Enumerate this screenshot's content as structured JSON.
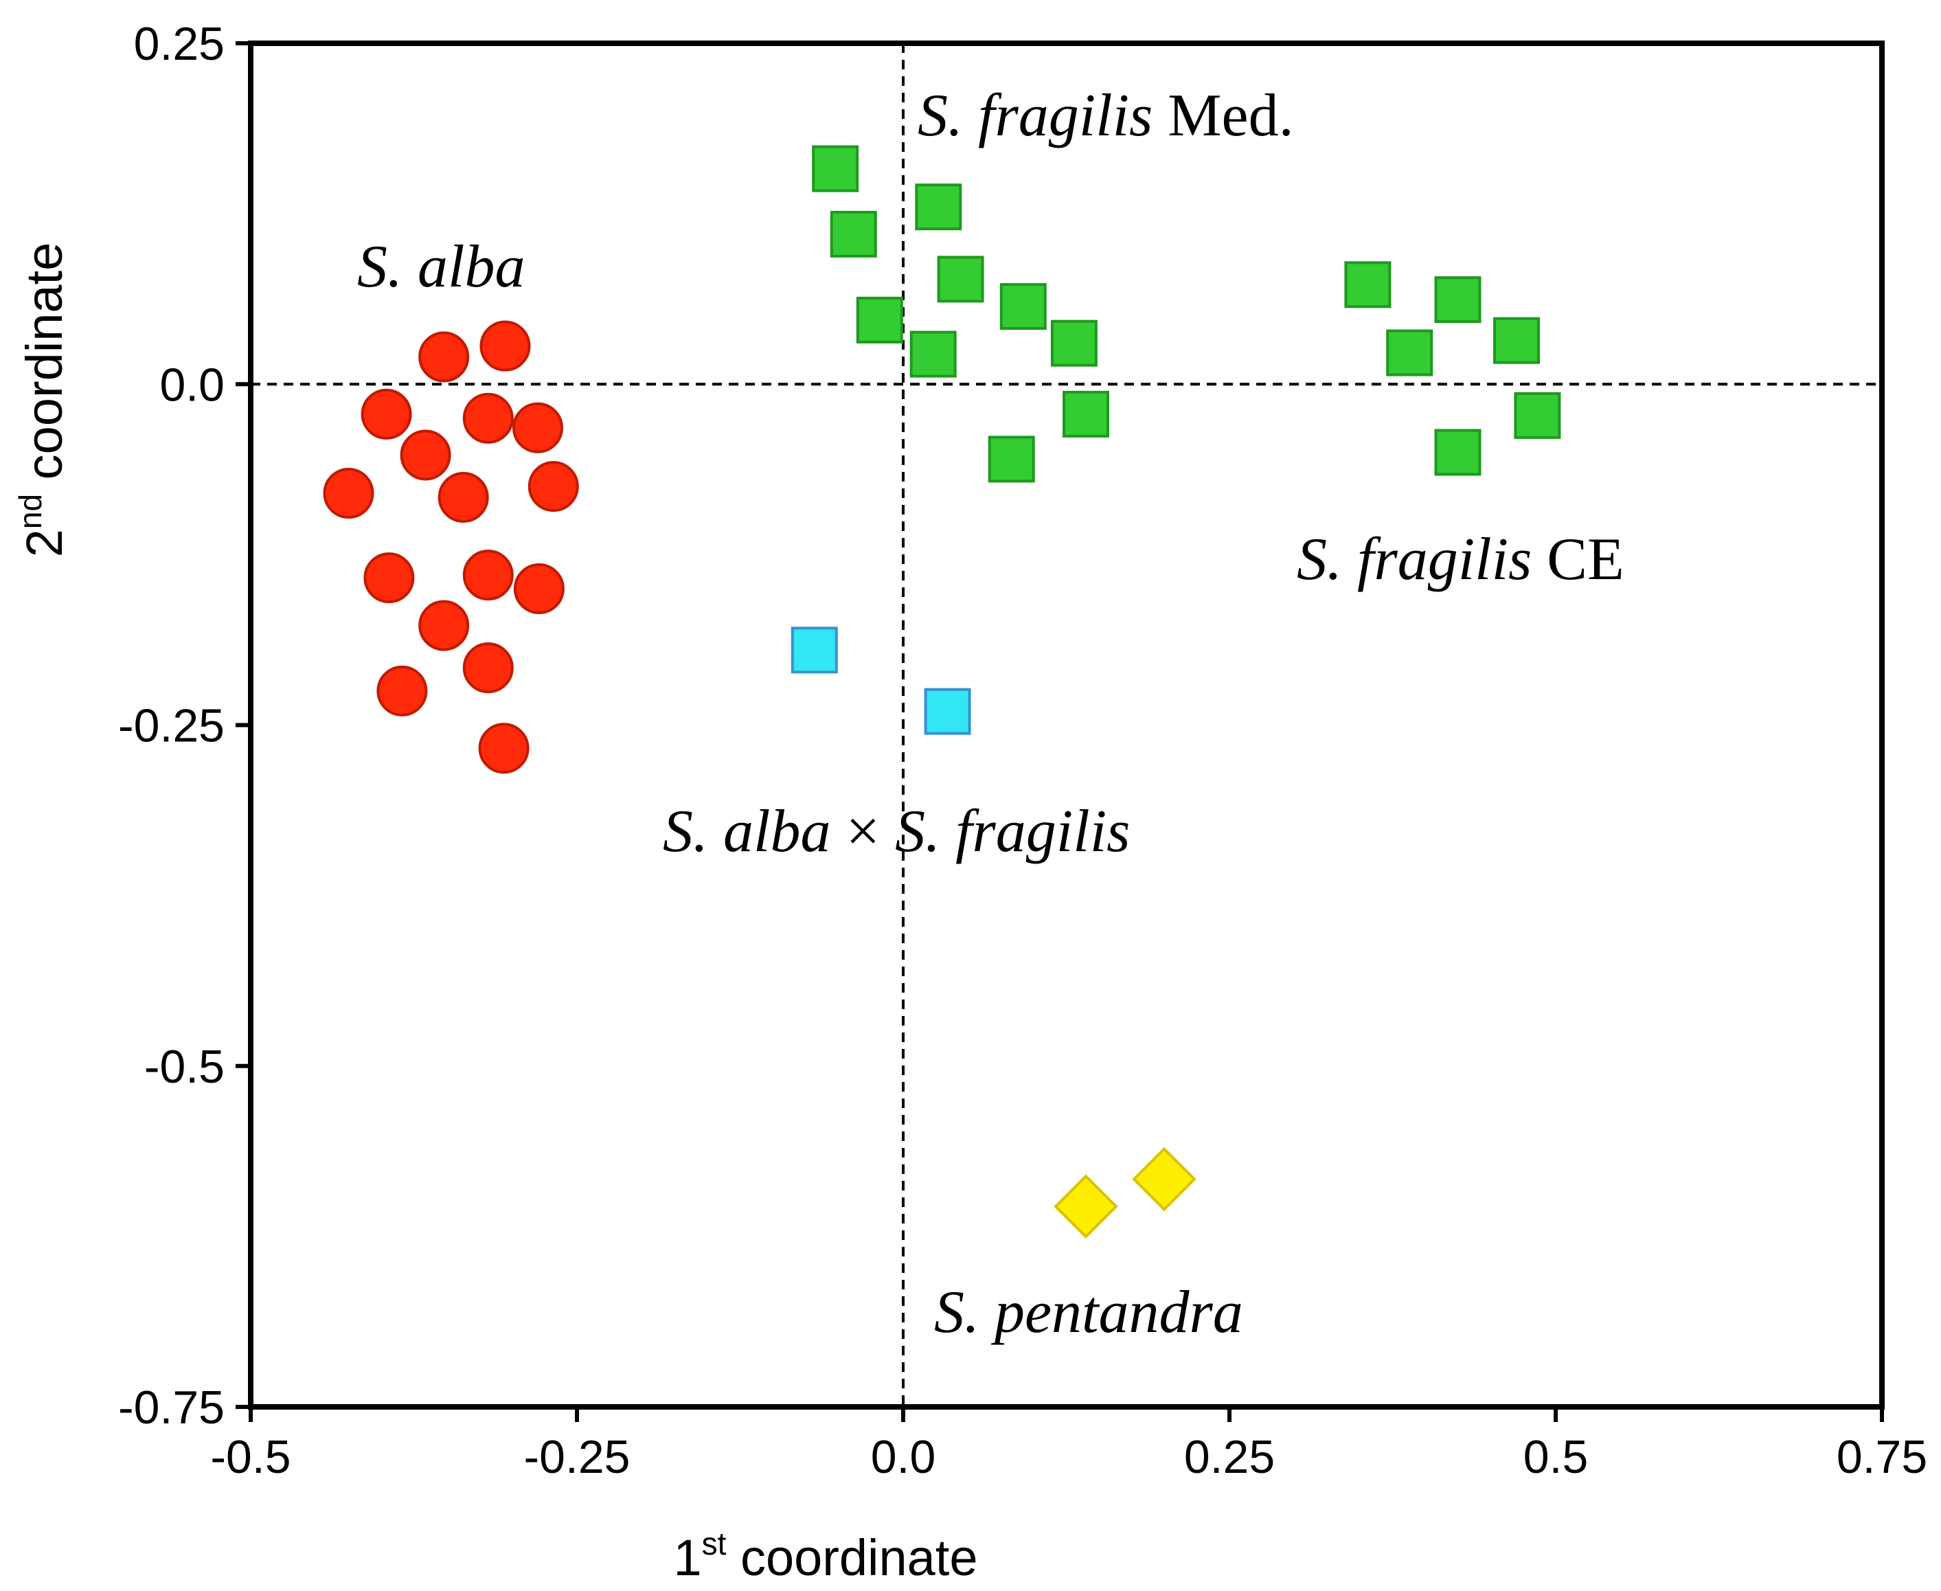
{
  "chart_data": {
    "type": "scatter",
    "title": "",
    "xlabel": {
      "prefix": "1",
      "sup": "st",
      "rest": " coordinate"
    },
    "ylabel": {
      "prefix": "2",
      "sup": "nd",
      "rest": " coordinate"
    },
    "xlim": [
      -0.5,
      0.75
    ],
    "ylim": [
      -0.75,
      0.25
    ],
    "xticks": [
      -0.5,
      -0.25,
      0.0,
      0.25,
      0.5,
      0.75
    ],
    "xtick_labels": [
      "-0.5",
      "-0.25",
      "0.0",
      "0.25",
      "0.5",
      "0.75"
    ],
    "yticks": [
      0.25,
      0.0,
      -0.25,
      -0.5,
      -0.75
    ],
    "ytick_labels": [
      "0.25",
      "0.0",
      "-0.25",
      "-0.5",
      "-0.75"
    ],
    "reference_lines": {
      "x": 0.0,
      "y": 0.0,
      "style": "dashed"
    },
    "series": [
      {
        "name": "S. alba",
        "marker": "circle",
        "color": "#ff2a0a",
        "edge": "#c21a00",
        "points": [
          [
            -0.305,
            0.028
          ],
          [
            -0.352,
            0.02
          ],
          [
            -0.396,
            -0.022
          ],
          [
            -0.318,
            -0.025
          ],
          [
            -0.28,
            -0.032
          ],
          [
            -0.366,
            -0.052
          ],
          [
            -0.425,
            -0.08
          ],
          [
            -0.337,
            -0.083
          ],
          [
            -0.268,
            -0.075
          ],
          [
            -0.394,
            -0.142
          ],
          [
            -0.318,
            -0.14
          ],
          [
            -0.279,
            -0.15
          ],
          [
            -0.352,
            -0.177
          ],
          [
            -0.318,
            -0.208
          ],
          [
            -0.384,
            -0.225
          ],
          [
            -0.306,
            -0.267
          ]
        ]
      },
      {
        "name": "S. fragilis Med.",
        "marker": "square",
        "color": "#33cc33",
        "edge": "#1e9a1e",
        "points": [
          [
            -0.052,
            0.158
          ],
          [
            -0.038,
            0.11
          ],
          [
            -0.018,
            0.047
          ],
          [
            0.027,
            0.13
          ],
          [
            0.044,
            0.077
          ],
          [
            0.023,
            0.022
          ],
          [
            0.092,
            0.057
          ],
          [
            0.131,
            0.03
          ],
          [
            0.14,
            -0.022
          ],
          [
            0.083,
            -0.055
          ]
        ]
      },
      {
        "name": "S. fragilis CE",
        "marker": "square",
        "color": "#33cc33",
        "edge": "#1e9a1e",
        "points": [
          [
            0.356,
            0.073
          ],
          [
            0.388,
            0.023
          ],
          [
            0.425,
            0.062
          ],
          [
            0.47,
            0.032
          ],
          [
            0.486,
            -0.023
          ],
          [
            0.425,
            -0.05
          ]
        ]
      },
      {
        "name": "S. alba x S. fragilis",
        "marker": "square",
        "color": "#33e6f5",
        "edge": "#3a8fd6",
        "points": [
          [
            -0.068,
            -0.195
          ],
          [
            0.034,
            -0.24
          ]
        ]
      },
      {
        "name": "S. pentandra",
        "marker": "diamond",
        "color": "#ffee00",
        "edge": "#d9c400",
        "points": [
          [
            0.14,
            -0.603
          ],
          [
            0.2,
            -0.583
          ]
        ]
      }
    ],
    "annotations": [
      {
        "id": "med",
        "parts": [
          {
            "text": "S. fragilis",
            "italic": true
          },
          {
            "text": " Med.",
            "italic": false
          }
        ]
      },
      {
        "id": "alba",
        "parts": [
          {
            "text": "S. alba",
            "italic": true
          }
        ]
      },
      {
        "id": "ce",
        "parts": [
          {
            "text": "S. fragilis",
            "italic": true
          },
          {
            "text": " CE",
            "italic": false
          }
        ]
      },
      {
        "id": "hybrid",
        "parts": [
          {
            "text": "S. alba",
            "italic": true
          },
          {
            "text": " × ",
            "italic": false
          },
          {
            "text": "S. fragilis",
            "italic": true
          }
        ]
      },
      {
        "id": "pent",
        "parts": [
          {
            "text": "S. pentandra",
            "italic": true
          }
        ]
      }
    ]
  }
}
